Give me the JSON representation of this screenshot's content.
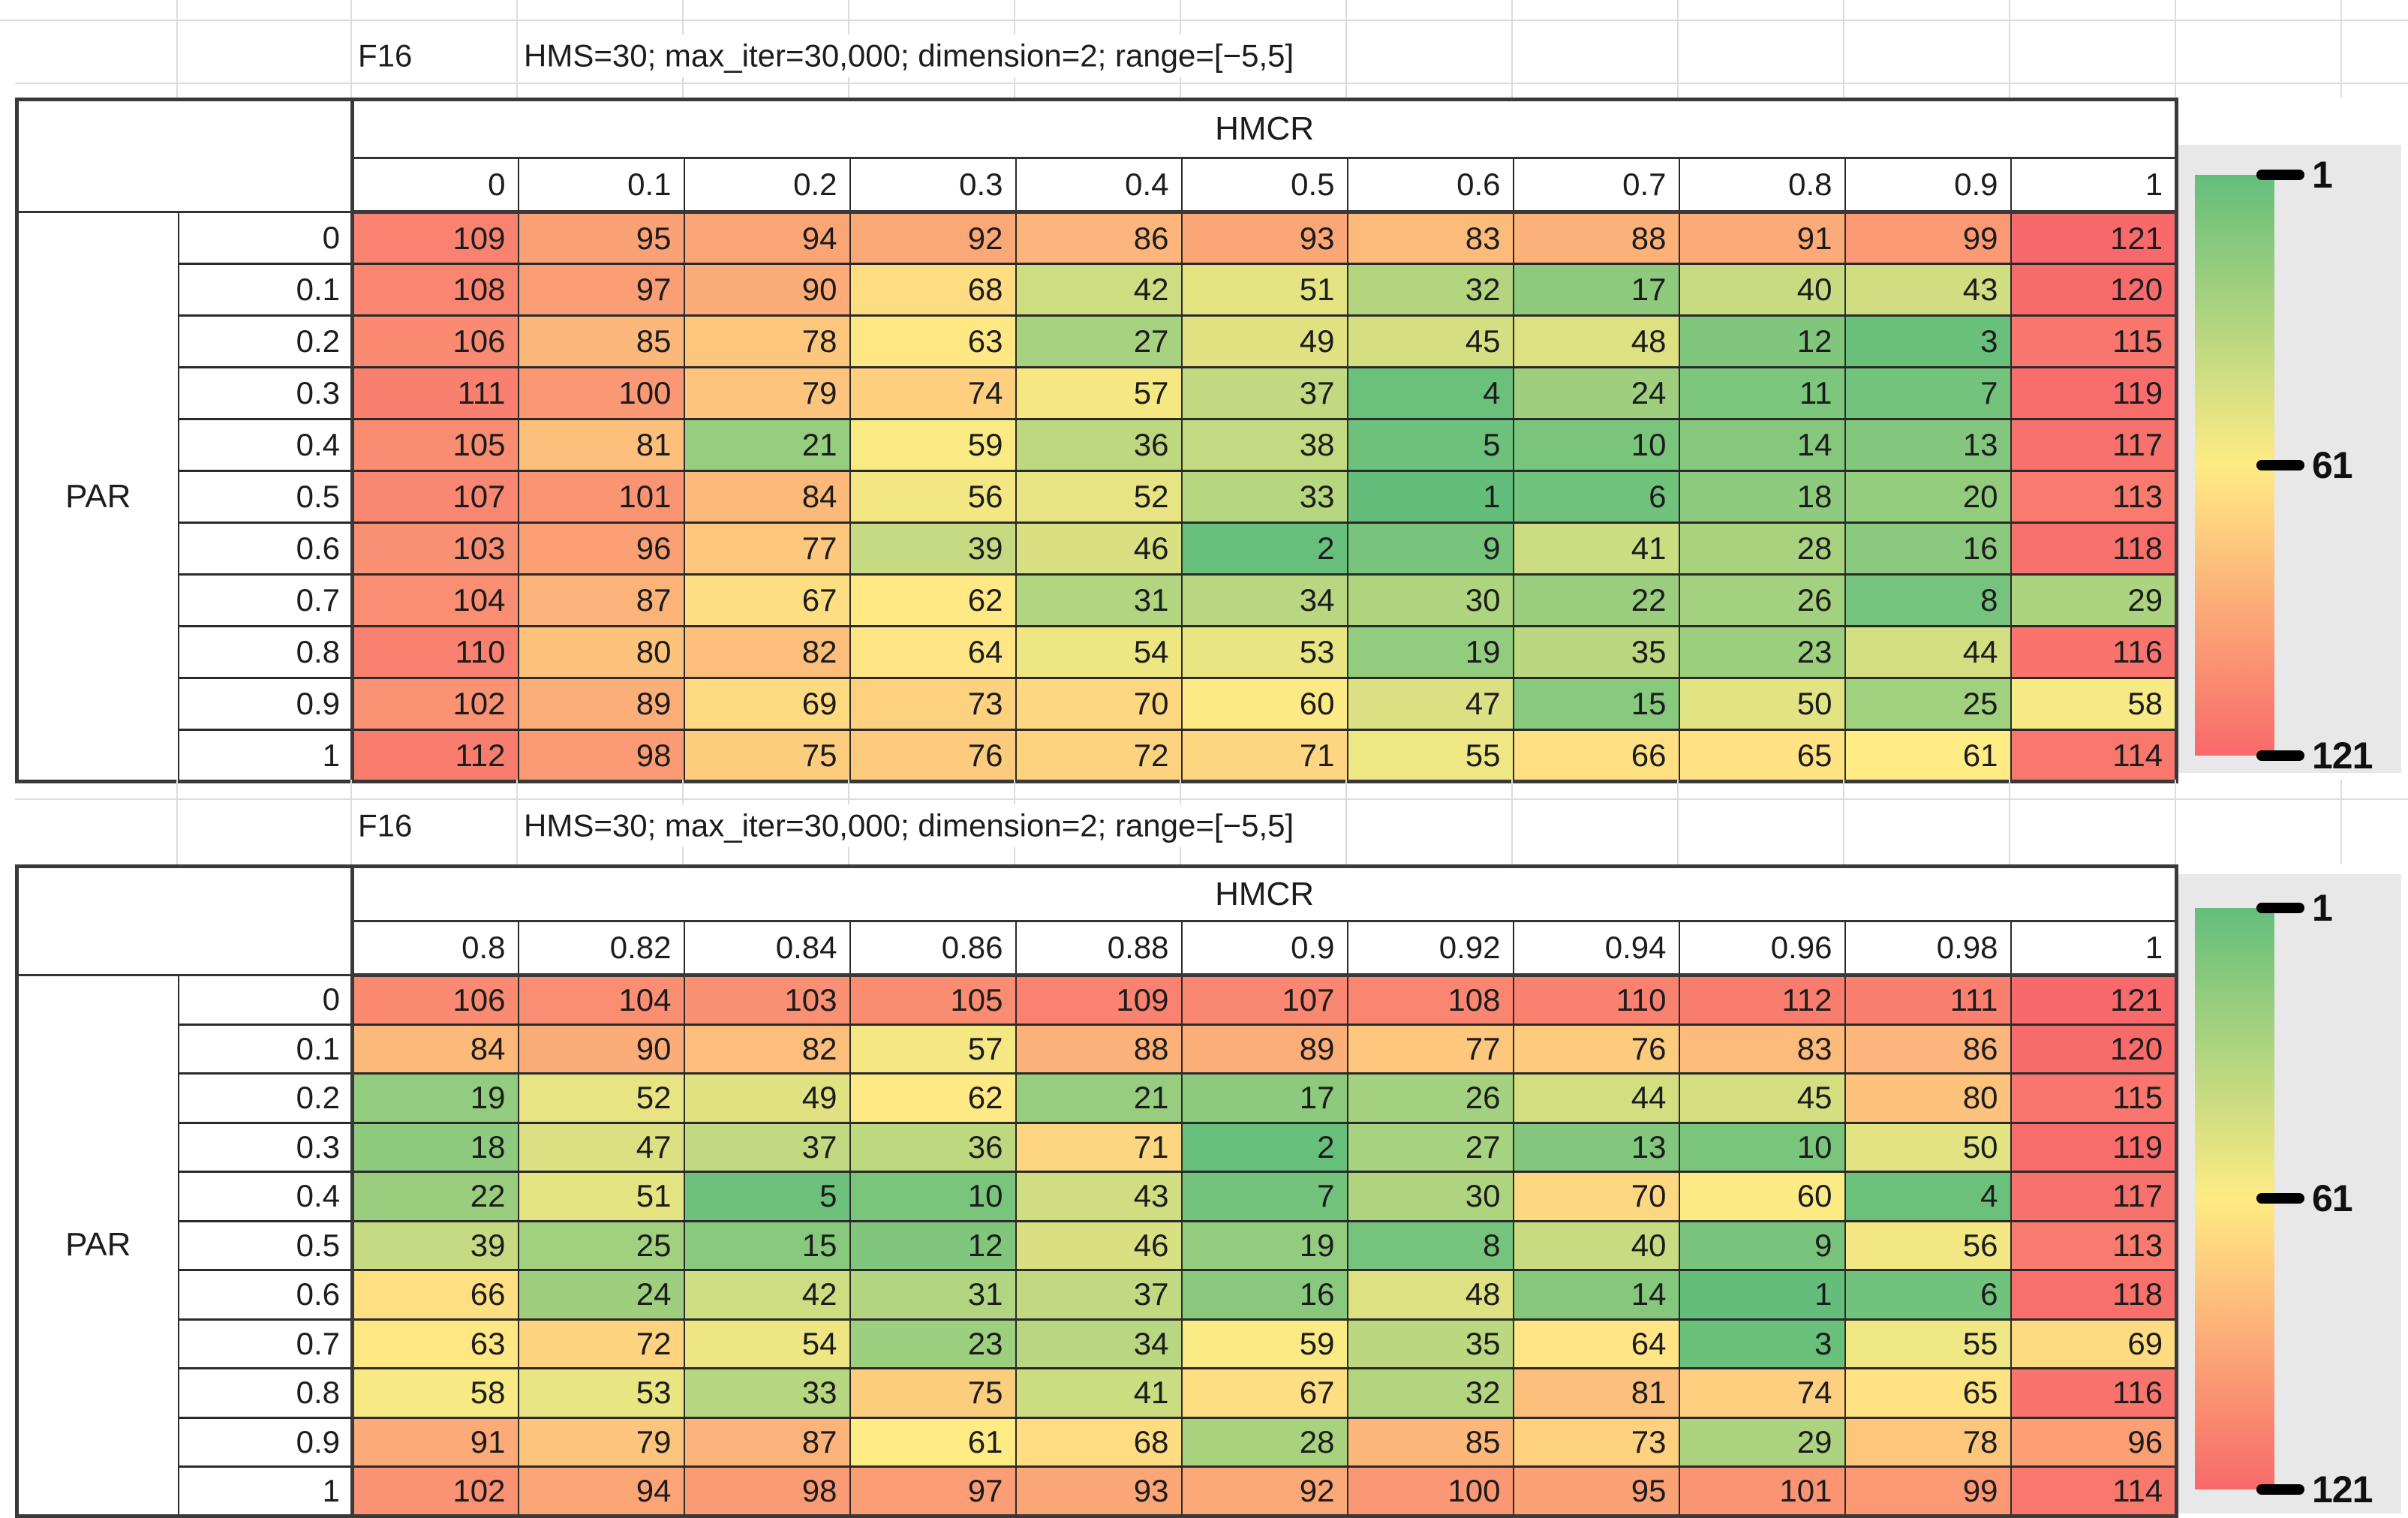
{
  "page": {
    "background": "#ffffff"
  },
  "color_scale": {
    "min_value": 1,
    "mid_value": 61,
    "max_value": 121,
    "min_color": "#63BE7B",
    "mid_color": "#FFEB84",
    "max_color": "#F8696B"
  },
  "legend": {
    "panel_color": "#e8e8e8",
    "ticks": [
      "1",
      "61",
      "121"
    ]
  },
  "chart_data": [
    {
      "type": "heatmap",
      "title": "F16",
      "subtitle": "HMS=30; max_iter=30,000; dimension=2; range=[−5,5]",
      "x_label": "HMCR",
      "y_label": "PAR",
      "x": [
        "0",
        "0.1",
        "0.2",
        "0.3",
        "0.4",
        "0.5",
        "0.6",
        "0.7",
        "0.8",
        "0.9",
        "1"
      ],
      "y": [
        "0",
        "0.1",
        "0.2",
        "0.3",
        "0.4",
        "0.5",
        "0.6",
        "0.7",
        "0.8",
        "0.9",
        "1"
      ],
      "values": [
        [
          109,
          95,
          94,
          92,
          86,
          93,
          83,
          88,
          91,
          99,
          121
        ],
        [
          108,
          97,
          90,
          68,
          42,
          51,
          32,
          17,
          40,
          43,
          120
        ],
        [
          106,
          85,
          78,
          63,
          27,
          49,
          45,
          48,
          12,
          3,
          115
        ],
        [
          111,
          100,
          79,
          74,
          57,
          37,
          4,
          24,
          11,
          7,
          119
        ],
        [
          105,
          81,
          21,
          59,
          36,
          38,
          5,
          10,
          14,
          13,
          117
        ],
        [
          107,
          101,
          84,
          56,
          52,
          33,
          1,
          6,
          18,
          20,
          113
        ],
        [
          103,
          96,
          77,
          39,
          46,
          2,
          9,
          41,
          28,
          16,
          118
        ],
        [
          104,
          87,
          67,
          62,
          31,
          34,
          30,
          22,
          26,
          8,
          29
        ],
        [
          110,
          80,
          82,
          64,
          54,
          53,
          19,
          35,
          23,
          44,
          116
        ],
        [
          102,
          89,
          69,
          73,
          70,
          60,
          47,
          15,
          50,
          25,
          58
        ],
        [
          112,
          98,
          75,
          76,
          72,
          71,
          55,
          66,
          65,
          61,
          114
        ]
      ],
      "colorbar": {
        "min": 1,
        "mid": 61,
        "max": 121,
        "ticks": [
          "1",
          "61",
          "121"
        ]
      }
    },
    {
      "type": "heatmap",
      "title": "F16",
      "subtitle": "HMS=30; max_iter=30,000; dimension=2; range=[−5,5]",
      "x_label": "HMCR",
      "y_label": "PAR",
      "x": [
        "0.8",
        "0.82",
        "0.84",
        "0.86",
        "0.88",
        "0.9",
        "0.92",
        "0.94",
        "0.96",
        "0.98",
        "1"
      ],
      "y": [
        "0",
        "0.1",
        "0.2",
        "0.3",
        "0.4",
        "0.5",
        "0.6",
        "0.7",
        "0.8",
        "0.9",
        "1"
      ],
      "values": [
        [
          106,
          104,
          103,
          105,
          109,
          107,
          108,
          110,
          112,
          111,
          121
        ],
        [
          84,
          90,
          82,
          57,
          88,
          89,
          77,
          76,
          83,
          86,
          120
        ],
        [
          19,
          52,
          49,
          62,
          21,
          17,
          26,
          44,
          45,
          80,
          115
        ],
        [
          18,
          47,
          37,
          36,
          71,
          2,
          27,
          13,
          10,
          50,
          119
        ],
        [
          22,
          51,
          5,
          10,
          43,
          7,
          30,
          70,
          60,
          4,
          117
        ],
        [
          39,
          25,
          15,
          12,
          46,
          19,
          8,
          40,
          9,
          56,
          113
        ],
        [
          66,
          24,
          42,
          31,
          37,
          16,
          48,
          14,
          1,
          6,
          118
        ],
        [
          63,
          72,
          54,
          23,
          34,
          59,
          35,
          64,
          3,
          55,
          69
        ],
        [
          58,
          53,
          33,
          75,
          41,
          67,
          32,
          81,
          74,
          65,
          116
        ],
        [
          91,
          79,
          87,
          61,
          68,
          28,
          85,
          73,
          29,
          78,
          96
        ],
        [
          102,
          94,
          98,
          97,
          93,
          92,
          100,
          95,
          101,
          99,
          114
        ]
      ],
      "colorbar": {
        "min": 1,
        "mid": 61,
        "max": 121,
        "ticks": [
          "1",
          "61",
          "121"
        ]
      }
    }
  ]
}
